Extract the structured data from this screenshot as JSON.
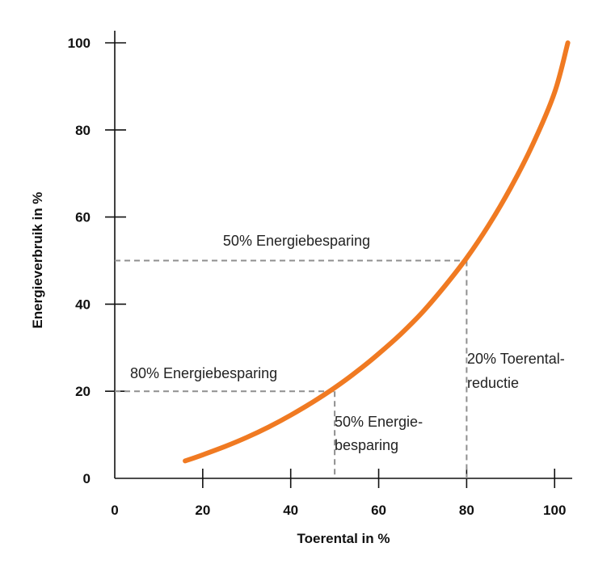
{
  "chart_data": {
    "type": "line",
    "xlabel": "Toerental in %",
    "ylabel": "Energieverbruik in  %",
    "xlim": [
      0,
      104
    ],
    "ylim": [
      0,
      100
    ],
    "x_ticks": [
      0,
      20,
      40,
      60,
      80,
      100
    ],
    "y_ticks": [
      0,
      20,
      40,
      60,
      80,
      100
    ],
    "series": [
      {
        "color": "#f07a22",
        "x": [
          16,
          20,
          25,
          30,
          35,
          40,
          45,
          50,
          55,
          60,
          65,
          70,
          75,
          80,
          85,
          90,
          95,
          100,
          103
        ],
        "y": [
          4,
          5.4,
          7.3,
          9.4,
          11.8,
          14.5,
          17.5,
          20.8,
          24.5,
          28.6,
          33.1,
          38.2,
          44.1,
          50.6,
          58.1,
          66.7,
          76.6,
          88.6,
          100
        ]
      }
    ],
    "guides": [
      {
        "from_x": 0,
        "to_x": 50,
        "y": 20,
        "drop_x": 50
      },
      {
        "from_x": 0,
        "to_x": 80,
        "y": 50,
        "drop_x": 80
      }
    ],
    "annotations": [
      {
        "id": "a50",
        "text": "50% Energiebesparing"
      },
      {
        "id": "a80",
        "text": "80% Energiebesparing"
      },
      {
        "id": "a50b",
        "lines": [
          "50% Energie-",
          "besparing"
        ]
      },
      {
        "id": "a20",
        "lines": [
          "20% Toerental-",
          "reductie"
        ]
      }
    ]
  }
}
